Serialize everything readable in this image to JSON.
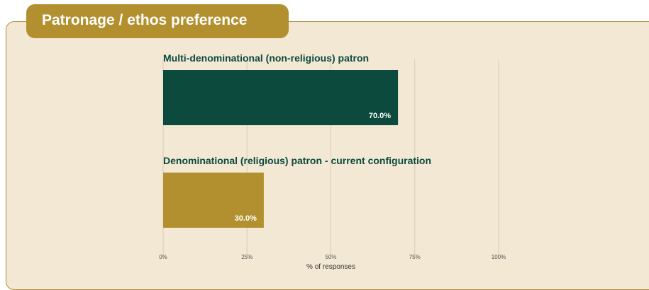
{
  "header": {
    "title": "Patronage / ethos preference"
  },
  "chart_data": {
    "type": "bar",
    "orientation": "horizontal",
    "categories": [
      "Multi-denominational (non-religious) patron",
      "Denominational (religious) patron - current configuration"
    ],
    "values": [
      70.0,
      30.0
    ],
    "value_labels": [
      "70.0%",
      "30.0%"
    ],
    "colors": [
      "#0b4a3d",
      "#b3902f"
    ],
    "xlabel": "% of responses",
    "xlim": [
      0,
      100
    ],
    "xticks": [
      0,
      25,
      50,
      75,
      100
    ],
    "xtick_labels": [
      "0%",
      "25%",
      "50%",
      "75%",
      "100%"
    ],
    "grid": true
  }
}
